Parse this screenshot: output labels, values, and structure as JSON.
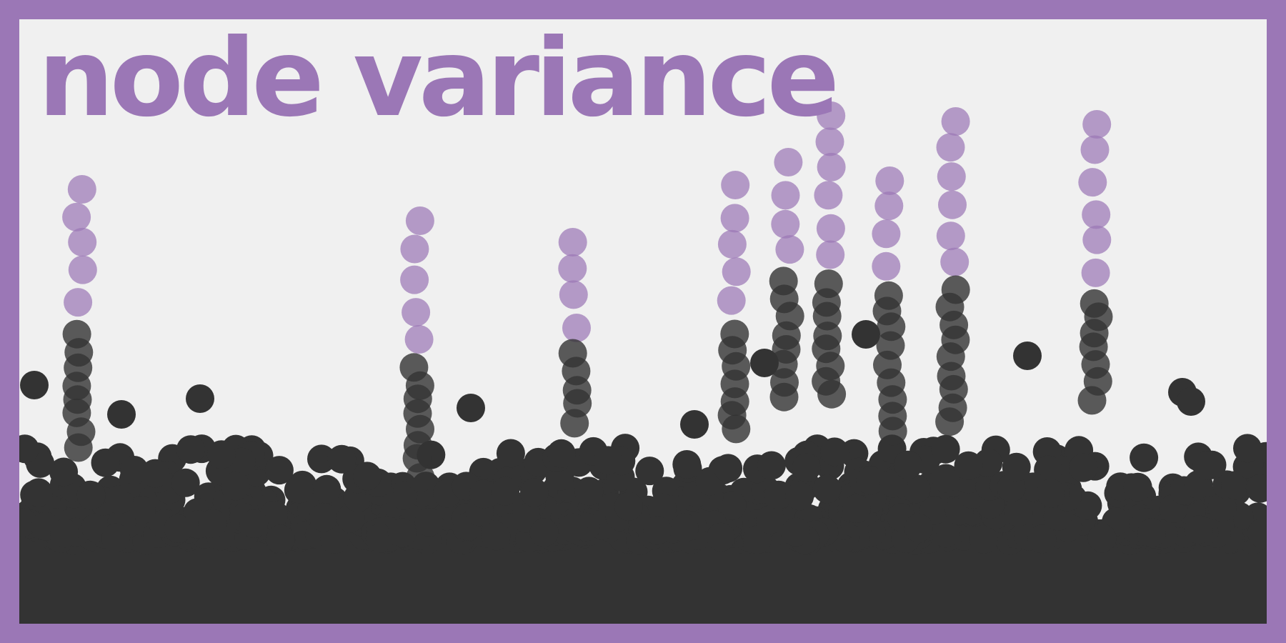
{
  "title": "node variance",
  "colors": {
    "frame": "#9b77b6",
    "background": "#f0f0f0",
    "dark_dot": "#333333",
    "accent_dot": "#9b77b6",
    "title": "#9b77b6"
  }
}
